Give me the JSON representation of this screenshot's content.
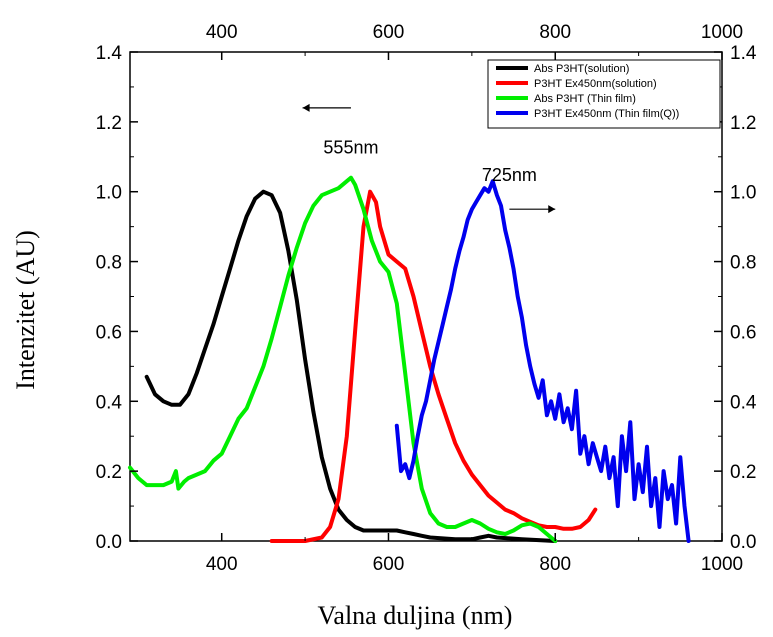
{
  "chart_data": {
    "type": "line",
    "xlabel": "Valna duljina (nm)",
    "ylabel": "Intenzitet (AU)",
    "xlim": [
      290,
      1000
    ],
    "ylim": [
      0,
      1.4
    ],
    "x_ticks": [
      400,
      600,
      800,
      1000
    ],
    "y_ticks": [
      0.0,
      0.2,
      0.4,
      0.6,
      0.8,
      1.0,
      1.2,
      1.4
    ],
    "x_tick_labels": [
      "400",
      "600",
      "800",
      "1000"
    ],
    "y_tick_labels": [
      "0.0",
      "0.2",
      "0.4",
      "0.6",
      "0.8",
      "1.0",
      "1.2",
      "1.4"
    ],
    "legend_position": "top-right",
    "grid": false,
    "series": [
      {
        "name": "Abs P3HT(solution)",
        "color": "#000000",
        "points": [
          [
            310,
            0.47
          ],
          [
            320,
            0.42
          ],
          [
            330,
            0.4
          ],
          [
            340,
            0.39
          ],
          [
            350,
            0.39
          ],
          [
            360,
            0.42
          ],
          [
            370,
            0.48
          ],
          [
            380,
            0.55
          ],
          [
            390,
            0.62
          ],
          [
            400,
            0.7
          ],
          [
            410,
            0.78
          ],
          [
            420,
            0.86
          ],
          [
            430,
            0.93
          ],
          [
            440,
            0.98
          ],
          [
            450,
            1.0
          ],
          [
            460,
            0.99
          ],
          [
            470,
            0.94
          ],
          [
            480,
            0.83
          ],
          [
            490,
            0.69
          ],
          [
            500,
            0.52
          ],
          [
            510,
            0.37
          ],
          [
            520,
            0.24
          ],
          [
            530,
            0.15
          ],
          [
            540,
            0.09
          ],
          [
            550,
            0.06
          ],
          [
            560,
            0.04
          ],
          [
            570,
            0.03
          ],
          [
            580,
            0.03
          ],
          [
            590,
            0.03
          ],
          [
            600,
            0.03
          ],
          [
            610,
            0.03
          ],
          [
            620,
            0.025
          ],
          [
            630,
            0.02
          ],
          [
            640,
            0.015
          ],
          [
            650,
            0.01
          ],
          [
            680,
            0.005
          ],
          [
            700,
            0.005
          ],
          [
            710,
            0.01
          ],
          [
            720,
            0.015
          ],
          [
            730,
            0.01
          ],
          [
            760,
            0.005
          ],
          [
            800,
            0.0
          ]
        ]
      },
      {
        "name": "P3HT Ex450nm(solution)",
        "color": "#ff0000",
        "points": [
          [
            460,
            0.0
          ],
          [
            500,
            0.0
          ],
          [
            520,
            0.01
          ],
          [
            530,
            0.04
          ],
          [
            540,
            0.12
          ],
          [
            550,
            0.3
          ],
          [
            560,
            0.6
          ],
          [
            570,
            0.9
          ],
          [
            578,
            1.0
          ],
          [
            585,
            0.97
          ],
          [
            590,
            0.9
          ],
          [
            600,
            0.82
          ],
          [
            610,
            0.8
          ],
          [
            620,
            0.78
          ],
          [
            630,
            0.7
          ],
          [
            640,
            0.6
          ],
          [
            650,
            0.5
          ],
          [
            660,
            0.42
          ],
          [
            670,
            0.35
          ],
          [
            680,
            0.28
          ],
          [
            690,
            0.23
          ],
          [
            700,
            0.19
          ],
          [
            710,
            0.16
          ],
          [
            720,
            0.13
          ],
          [
            730,
            0.11
          ],
          [
            740,
            0.09
          ],
          [
            750,
            0.08
          ],
          [
            760,
            0.065
          ],
          [
            770,
            0.055
          ],
          [
            780,
            0.045
          ],
          [
            790,
            0.04
          ],
          [
            800,
            0.04
          ],
          [
            810,
            0.035
          ],
          [
            820,
            0.035
          ],
          [
            830,
            0.04
          ],
          [
            840,
            0.06
          ],
          [
            848,
            0.09
          ]
        ]
      },
      {
        "name": "Abs P3HT (Thin film)",
        "color": "#00ee00",
        "points": [
          [
            290,
            0.21
          ],
          [
            300,
            0.18
          ],
          [
            310,
            0.16
          ],
          [
            320,
            0.16
          ],
          [
            330,
            0.16
          ],
          [
            340,
            0.17
          ],
          [
            345,
            0.2
          ],
          [
            348,
            0.15
          ],
          [
            355,
            0.17
          ],
          [
            360,
            0.18
          ],
          [
            370,
            0.19
          ],
          [
            380,
            0.2
          ],
          [
            390,
            0.23
          ],
          [
            400,
            0.25
          ],
          [
            410,
            0.3
          ],
          [
            420,
            0.35
          ],
          [
            430,
            0.38
          ],
          [
            440,
            0.44
          ],
          [
            450,
            0.5
          ],
          [
            460,
            0.58
          ],
          [
            470,
            0.67
          ],
          [
            480,
            0.76
          ],
          [
            490,
            0.84
          ],
          [
            500,
            0.91
          ],
          [
            510,
            0.96
          ],
          [
            520,
            0.99
          ],
          [
            530,
            1.0
          ],
          [
            540,
            1.01
          ],
          [
            550,
            1.03
          ],
          [
            555,
            1.04
          ],
          [
            560,
            1.02
          ],
          [
            570,
            0.95
          ],
          [
            580,
            0.86
          ],
          [
            590,
            0.8
          ],
          [
            600,
            0.77
          ],
          [
            610,
            0.68
          ],
          [
            620,
            0.48
          ],
          [
            630,
            0.28
          ],
          [
            640,
            0.15
          ],
          [
            650,
            0.08
          ],
          [
            660,
            0.05
          ],
          [
            670,
            0.04
          ],
          [
            680,
            0.04
          ],
          [
            690,
            0.05
          ],
          [
            700,
            0.06
          ],
          [
            710,
            0.05
          ],
          [
            720,
            0.035
          ],
          [
            730,
            0.025
          ],
          [
            740,
            0.02
          ],
          [
            750,
            0.03
          ],
          [
            760,
            0.045
          ],
          [
            770,
            0.05
          ],
          [
            780,
            0.04
          ],
          [
            790,
            0.02
          ],
          [
            800,
            0.0
          ]
        ]
      },
      {
        "name": "P3HT Ex450nm (Thin film(Q))",
        "color": "#0000ee",
        "points": [
          [
            610,
            0.33
          ],
          [
            615,
            0.2
          ],
          [
            620,
            0.22
          ],
          [
            625,
            0.18
          ],
          [
            630,
            0.23
          ],
          [
            635,
            0.3
          ],
          [
            640,
            0.36
          ],
          [
            645,
            0.4
          ],
          [
            650,
            0.46
          ],
          [
            655,
            0.52
          ],
          [
            660,
            0.57
          ],
          [
            665,
            0.62
          ],
          [
            670,
            0.67
          ],
          [
            675,
            0.72
          ],
          [
            680,
            0.78
          ],
          [
            685,
            0.83
          ],
          [
            690,
            0.87
          ],
          [
            695,
            0.92
          ],
          [
            700,
            0.95
          ],
          [
            705,
            0.97
          ],
          [
            710,
            0.99
          ],
          [
            715,
            1.01
          ],
          [
            720,
            1.0
          ],
          [
            725,
            1.03
          ],
          [
            730,
            0.99
          ],
          [
            735,
            0.96
          ],
          [
            740,
            0.89
          ],
          [
            745,
            0.84
          ],
          [
            750,
            0.78
          ],
          [
            755,
            0.7
          ],
          [
            760,
            0.64
          ],
          [
            765,
            0.56
          ],
          [
            770,
            0.5
          ],
          [
            775,
            0.45
          ],
          [
            780,
            0.41
          ],
          [
            785,
            0.46
          ],
          [
            790,
            0.36
          ],
          [
            795,
            0.4
          ],
          [
            800,
            0.35
          ],
          [
            805,
            0.42
          ],
          [
            810,
            0.34
          ],
          [
            815,
            0.38
          ],
          [
            820,
            0.32
          ],
          [
            825,
            0.43
          ],
          [
            830,
            0.25
          ],
          [
            835,
            0.3
          ],
          [
            840,
            0.22
          ],
          [
            845,
            0.28
          ],
          [
            850,
            0.24
          ],
          [
            855,
            0.2
          ],
          [
            860,
            0.27
          ],
          [
            865,
            0.18
          ],
          [
            870,
            0.24
          ],
          [
            875,
            0.1
          ],
          [
            880,
            0.3
          ],
          [
            885,
            0.2
          ],
          [
            890,
            0.34
          ],
          [
            895,
            0.12
          ],
          [
            900,
            0.22
          ],
          [
            905,
            0.14
          ],
          [
            910,
            0.27
          ],
          [
            915,
            0.1
          ],
          [
            920,
            0.18
          ],
          [
            925,
            0.04
          ],
          [
            930,
            0.2
          ],
          [
            935,
            0.12
          ],
          [
            940,
            0.16
          ],
          [
            945,
            0.05
          ],
          [
            950,
            0.24
          ],
          [
            955,
            0.1
          ],
          [
            960,
            0.0
          ]
        ]
      }
    ],
    "annotations": [
      {
        "text": "555nm",
        "x": 555,
        "y": 1.11,
        "arrow": "left",
        "arrow_from": [
          555,
          1.24
        ],
        "arrow_to": [
          497,
          1.24
        ]
      },
      {
        "text": "725nm",
        "x": 745,
        "y": 1.03,
        "arrow": "right",
        "arrow_from": [
          745,
          0.95
        ],
        "arrow_to": [
          800,
          0.95
        ]
      }
    ]
  }
}
